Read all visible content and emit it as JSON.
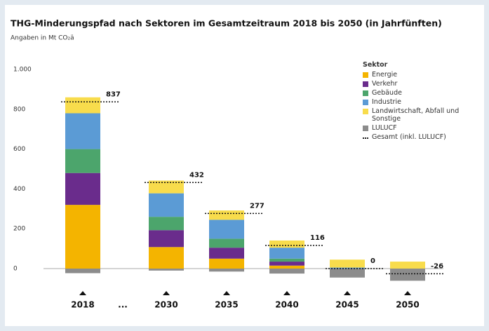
{
  "chart_data": {
    "type": "stacked_bar",
    "title": "THG-Minderungspfad nach Sektoren im Gesamtzeitraum 2018 bis 2050 (in Jahrfünften)",
    "subtitle": "Angaben in Mt CO₂ä",
    "legend_title": "Sektor",
    "gap_label": "...",
    "categories": [
      "2018",
      "2030",
      "2035",
      "2040",
      "2045",
      "2050"
    ],
    "series": [
      {
        "name": "Energie",
        "color": "#f4b400",
        "values": [
          320,
          108,
          50,
          15,
          0,
          0
        ]
      },
      {
        "name": "Verkehr",
        "color": "#6a2c8c",
        "values": [
          160,
          85,
          55,
          20,
          0,
          0
        ]
      },
      {
        "name": "Gebäude",
        "color": "#4ca56c",
        "values": [
          120,
          67,
          45,
          15,
          0,
          0
        ]
      },
      {
        "name": "Industrie",
        "color": "#5b9bd5",
        "values": [
          180,
          118,
          95,
          55,
          5,
          0
        ]
      },
      {
        "name": "Landwirtschaft, Abfall und Sonstige",
        "color": "#f8dc4c",
        "values": [
          80,
          64,
          47,
          36,
          40,
          35
        ]
      },
      {
        "name": "LULUCF",
        "color": "#8c8c8c",
        "values": [
          -23,
          -10,
          -15,
          -25,
          -45,
          -61
        ]
      }
    ],
    "total": {
      "name": "Gesamt (inkl. LULUCF)",
      "values": [
        837,
        432,
        277,
        116,
        0,
        -26
      ]
    },
    "ylim": [
      -80,
      1000
    ],
    "yticks": [
      0,
      200,
      400,
      600,
      800,
      {
        "value": 1000,
        "label": "1.000"
      }
    ],
    "grid": false
  }
}
